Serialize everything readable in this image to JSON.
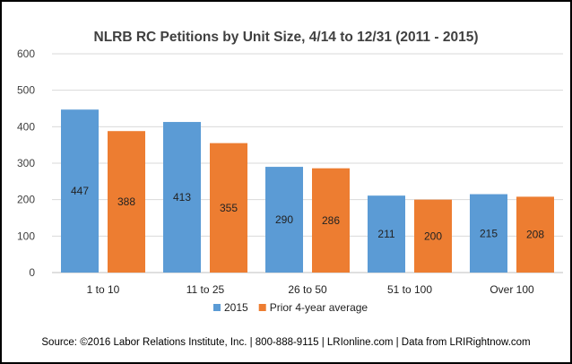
{
  "chart_data": {
    "type": "bar",
    "title": "NLRB RC Petitions by Unit Size, 4/14 to 12/31 (2011 - 2015)",
    "categories": [
      "1 to 10",
      "11 to 25",
      "26 to 50",
      "51 to 100",
      "Over 100"
    ],
    "series": [
      {
        "name": "2015",
        "values": [
          447,
          413,
          290,
          211,
          215
        ],
        "color": "#5b9bd5"
      },
      {
        "name": "Prior 4-year average",
        "values": [
          388,
          355,
          286,
          200,
          208
        ],
        "color": "#ed7d31"
      }
    ],
    "ylim": [
      0,
      600
    ],
    "yticks": [
      0,
      100,
      200,
      300,
      400,
      500,
      600
    ],
    "grid": true,
    "legend": "bottom",
    "data_labels": true
  },
  "source": "Source: ©2016 Labor Relations Institute, Inc. | 800-888-9115 | LRIonline.com | Data from LRIRightnow.com"
}
